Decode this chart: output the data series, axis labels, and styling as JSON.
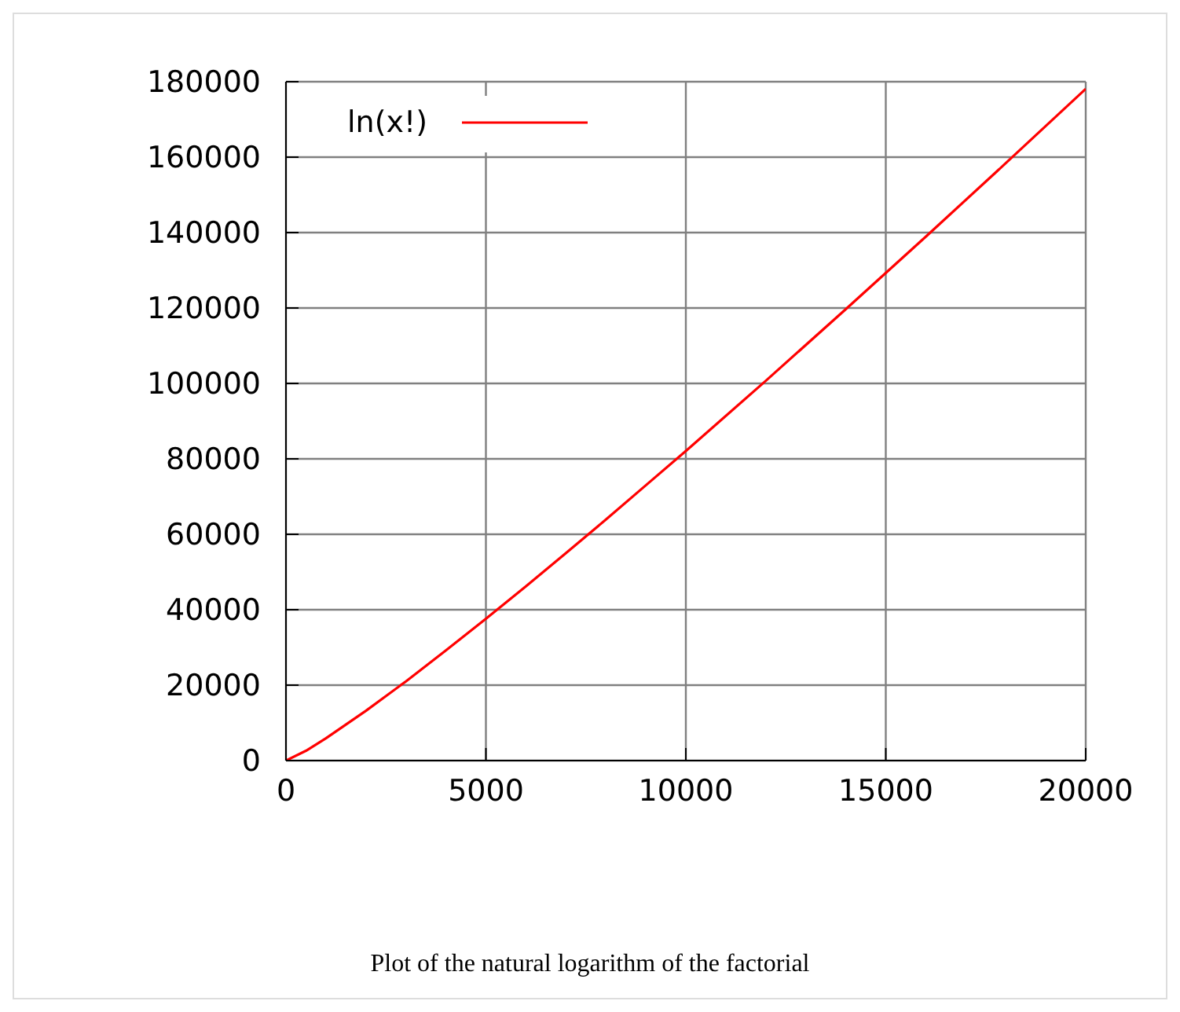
{
  "chart_data": {
    "type": "line",
    "xlim": [
      0,
      20000
    ],
    "xticks": [
      0,
      5000,
      10000,
      15000,
      20000
    ],
    "ylim": [
      0,
      180000
    ],
    "yticks": [
      0,
      20000,
      40000,
      60000,
      80000,
      100000,
      120000,
      140000,
      160000,
      180000
    ],
    "grid": true,
    "legend": "top left",
    "marker": "none",
    "line_style": "solid",
    "x": [
      0,
      500,
      1000,
      2000,
      3000,
      4000,
      5000,
      6000,
      7000,
      8000,
      9000,
      10000,
      12000,
      14000,
      16000,
      18000,
      20000
    ],
    "series": [
      {
        "name": "ln(x!)",
        "color": "#ff0000",
        "values": [
          0,
          2600,
          5900,
          13200,
          21000,
          29200,
          37600,
          46200,
          55000,
          63900,
          73000,
          82100,
          100700,
          119700,
          138900,
          158400,
          178100
        ]
      }
    ],
    "annotations": [
      "Plot of the natural logarithm of the factorial"
    ]
  }
}
